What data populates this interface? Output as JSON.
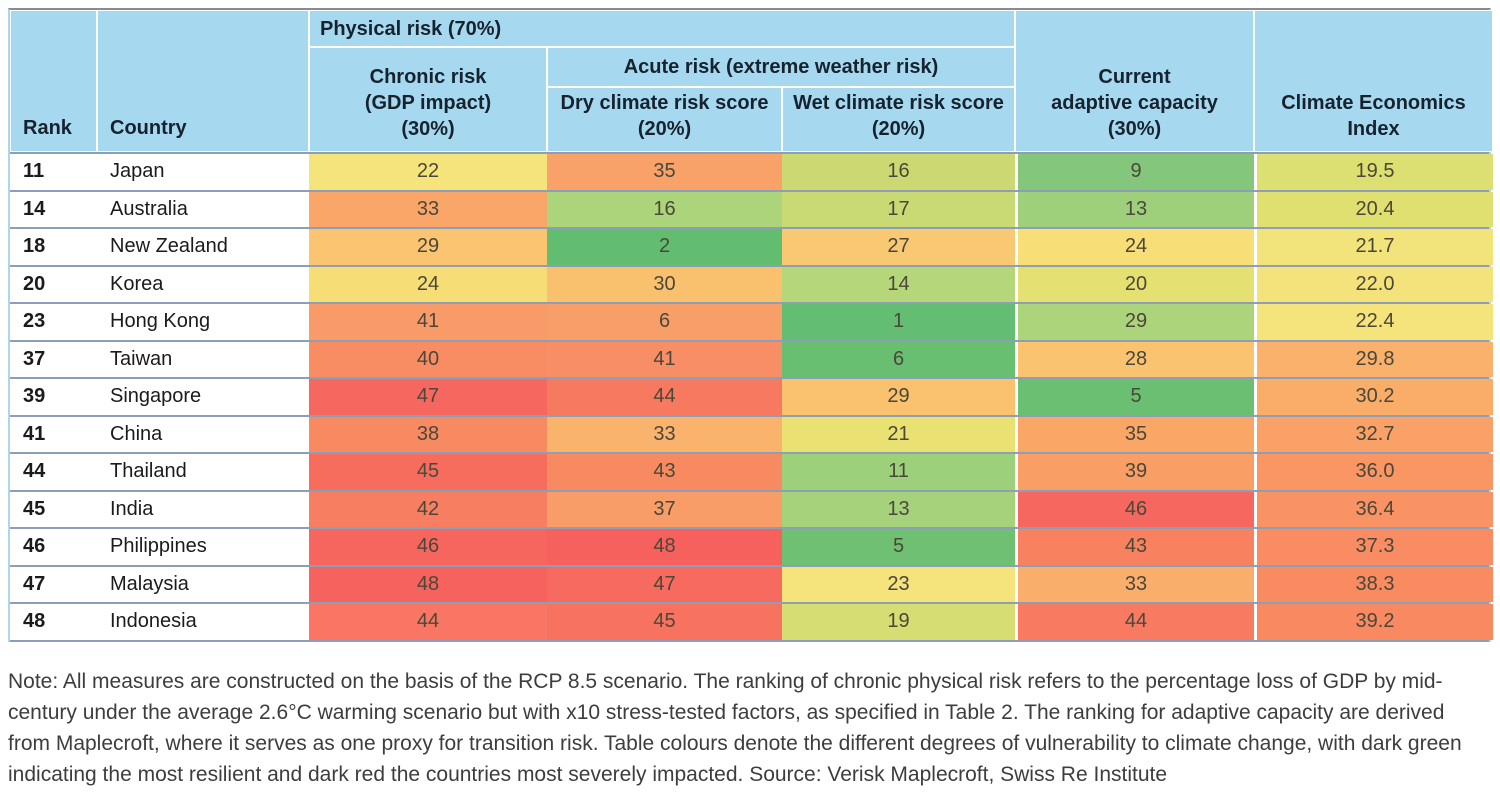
{
  "table": {
    "header": {
      "rank": "Rank",
      "country": "Country",
      "physical_risk": "Physical risk (70%)",
      "chronic_risk": "Chronic risk\n(GDP impact)\n(30%)",
      "acute_risk": "Acute risk (extreme weather risk)",
      "dry": "Dry climate risk score\n(20%)",
      "wet": "Wet climate risk score\n(20%)",
      "adaptive": "Current\nadaptive capacity\n(30%)",
      "cei": "Climate Economics\nIndex"
    },
    "cell_keys": [
      "chronic",
      "dry",
      "wet",
      "adaptive",
      "cei"
    ],
    "rows": [
      {
        "rank": "11",
        "country": "Japan",
        "cells": [
          {
            "v": "22",
            "c": "#f5e37b"
          },
          {
            "v": "35",
            "c": "#f8a169"
          },
          {
            "v": "16",
            "c": "#ccd973"
          },
          {
            "v": "9",
            "c": "#85c67d"
          },
          {
            "v": "19.5",
            "c": "#dcdf71"
          }
        ]
      },
      {
        "rank": "14",
        "country": "Australia",
        "cells": [
          {
            "v": "33",
            "c": "#f9a668"
          },
          {
            "v": "16",
            "c": "#abd47b"
          },
          {
            "v": "17",
            "c": "#c9d973"
          },
          {
            "v": "13",
            "c": "#9ed07c"
          },
          {
            "v": "20.4",
            "c": "#e0e071"
          }
        ]
      },
      {
        "rank": "18",
        "country": "New Zealand",
        "cells": [
          {
            "v": "29",
            "c": "#fac471"
          },
          {
            "v": "2",
            "c": "#62bd70"
          },
          {
            "v": "27",
            "c": "#f9c873"
          },
          {
            "v": "24",
            "c": "#f8de76"
          },
          {
            "v": "21.7",
            "c": "#f2e37a"
          }
        ]
      },
      {
        "rank": "20",
        "country": "Korea",
        "cells": [
          {
            "v": "24",
            "c": "#f7dd75"
          },
          {
            "v": "30",
            "c": "#f9c16d"
          },
          {
            "v": "14",
            "c": "#b6d67a"
          },
          {
            "v": "20",
            "c": "#e5e072"
          },
          {
            "v": "22.0",
            "c": "#f4e37b"
          }
        ]
      },
      {
        "rank": "23",
        "country": "Hong Kong",
        "cells": [
          {
            "v": "41",
            "c": "#f99a69"
          },
          {
            "v": "6",
            "c": "#f89e69"
          },
          {
            "v": "1",
            "c": "#63bd72"
          },
          {
            "v": "29",
            "c": "#abd47b"
          },
          {
            "v": "22.4",
            "c": "#f5e37c"
          }
        ]
      },
      {
        "rank": "37",
        "country": "Taiwan",
        "cells": [
          {
            "v": "40",
            "c": "#f88d64"
          },
          {
            "v": "41",
            "c": "#f88e65"
          },
          {
            "v": "6",
            "c": "#68bf72"
          },
          {
            "v": "28",
            "c": "#fac36f"
          },
          {
            "v": "29.8",
            "c": "#f9b16b"
          }
        ]
      },
      {
        "rank": "39",
        "country": "Singapore",
        "cells": [
          {
            "v": "47",
            "c": "#f6685f"
          },
          {
            "v": "44",
            "c": "#f7795f"
          },
          {
            "v": "29",
            "c": "#fac16e"
          },
          {
            "v": "5",
            "c": "#6abf72"
          },
          {
            "v": "30.2",
            "c": "#f9ad69"
          }
        ]
      },
      {
        "rank": "41",
        "country": "China",
        "cells": [
          {
            "v": "38",
            "c": "#f88a62"
          },
          {
            "v": "33",
            "c": "#f9b36c"
          },
          {
            "v": "21",
            "c": "#e9e273"
          },
          {
            "v": "35",
            "c": "#f9a667"
          },
          {
            "v": "32.7",
            "c": "#f9a166"
          }
        ]
      },
      {
        "rank": "44",
        "country": "Thailand",
        "cells": [
          {
            "v": "45",
            "c": "#f66d5e"
          },
          {
            "v": "43",
            "c": "#f88a62"
          },
          {
            "v": "11",
            "c": "#9dd07b"
          },
          {
            "v": "39",
            "c": "#f99e65"
          },
          {
            "v": "36.0",
            "c": "#f99663"
          }
        ]
      },
      {
        "rank": "45",
        "country": "India",
        "cells": [
          {
            "v": "42",
            "c": "#f87e61"
          },
          {
            "v": "37",
            "c": "#f89d68"
          },
          {
            "v": "13",
            "c": "#a6d27b"
          },
          {
            "v": "46",
            "c": "#f6685f"
          },
          {
            "v": "36.4",
            "c": "#f99363"
          }
        ]
      },
      {
        "rank": "46",
        "country": "Philippines",
        "cells": [
          {
            "v": "46",
            "c": "#f6665f"
          },
          {
            "v": "48",
            "c": "#f6615e"
          },
          {
            "v": "5",
            "c": "#6fc073"
          },
          {
            "v": "43",
            "c": "#f8815f"
          },
          {
            "v": "37.3",
            "c": "#f98c62"
          }
        ]
      },
      {
        "rank": "47",
        "country": "Malaysia",
        "cells": [
          {
            "v": "48",
            "c": "#f6625e"
          },
          {
            "v": "47",
            "c": "#f66a5f"
          },
          {
            "v": "23",
            "c": "#f5e37b"
          },
          {
            "v": "33",
            "c": "#f9ae6b"
          },
          {
            "v": "38.3",
            "c": "#f98b61"
          }
        ]
      },
      {
        "rank": "48",
        "country": "Indonesia",
        "cells": [
          {
            "v": "44",
            "c": "#f87663"
          },
          {
            "v": "45",
            "c": "#f7725f"
          },
          {
            "v": "19",
            "c": "#d6dd72"
          },
          {
            "v": "44",
            "c": "#f87a60"
          },
          {
            "v": "39.2",
            "c": "#f98960"
          }
        ]
      }
    ]
  },
  "note": "Note: All measures are constructed on the basis of the RCP 8.5 scenario. The ranking of chronic physical risk refers to the percentage loss of GDP by mid-century under the average 2.6°C warming scenario but with x10 stress-tested factors, as specified in Table 2. The ranking for adaptive capacity are derived from Maplecroft, where it serves as one proxy for transition risk. Table colours denote the different degrees of vulnerability to climate change, with dark green indicating the most resilient and dark red the countries most severely impacted. Source: Verisk Maplecroft, Swiss Re Institute",
  "colors": {
    "header_background": "#a6d8f0",
    "header_text": "#16232f",
    "row_separator": "#5b7ba0",
    "scale_best_green": "#62bd70",
    "scale_mid_yellow": "#f5e37b",
    "scale_worst_red": "#f6615e"
  },
  "chart_data": {
    "type": "table",
    "title": "",
    "column_groups": [
      {
        "label": "Physical risk (70%)",
        "columns": [
          "Chronic risk (GDP impact) (30%)",
          "Dry climate risk score (20%)",
          "Wet climate risk score (20%)"
        ]
      },
      {
        "label": "Acute risk (extreme weather risk)",
        "columns": [
          "Dry climate risk score (20%)",
          "Wet climate risk score (20%)"
        ]
      }
    ],
    "columns": [
      "Rank",
      "Country",
      "Chronic risk (GDP impact) (30%)",
      "Dry climate risk score (20%)",
      "Wet climate risk score (20%)",
      "Current adaptive capacity (30%)",
      "Climate Economics Index"
    ],
    "rows": [
      [
        11,
        "Japan",
        22,
        35,
        16,
        9,
        19.5
      ],
      [
        14,
        "Australia",
        33,
        16,
        17,
        13,
        20.4
      ],
      [
        18,
        "New Zealand",
        29,
        2,
        27,
        24,
        21.7
      ],
      [
        20,
        "Korea",
        24,
        30,
        14,
        20,
        22.0
      ],
      [
        23,
        "Hong Kong",
        41,
        6,
        1,
        29,
        22.4
      ],
      [
        37,
        "Taiwan",
        40,
        41,
        6,
        28,
        29.8
      ],
      [
        39,
        "Singapore",
        47,
        44,
        29,
        5,
        30.2
      ],
      [
        41,
        "China",
        38,
        33,
        21,
        35,
        32.7
      ],
      [
        44,
        "Thailand",
        45,
        43,
        11,
        39,
        36.0
      ],
      [
        45,
        "India",
        42,
        37,
        13,
        46,
        36.4
      ],
      [
        46,
        "Philippines",
        46,
        48,
        5,
        43,
        37.3
      ],
      [
        47,
        "Malaysia",
        48,
        47,
        23,
        33,
        38.3
      ],
      [
        48,
        "Indonesia",
        44,
        45,
        19,
        44,
        39.2
      ]
    ]
  }
}
